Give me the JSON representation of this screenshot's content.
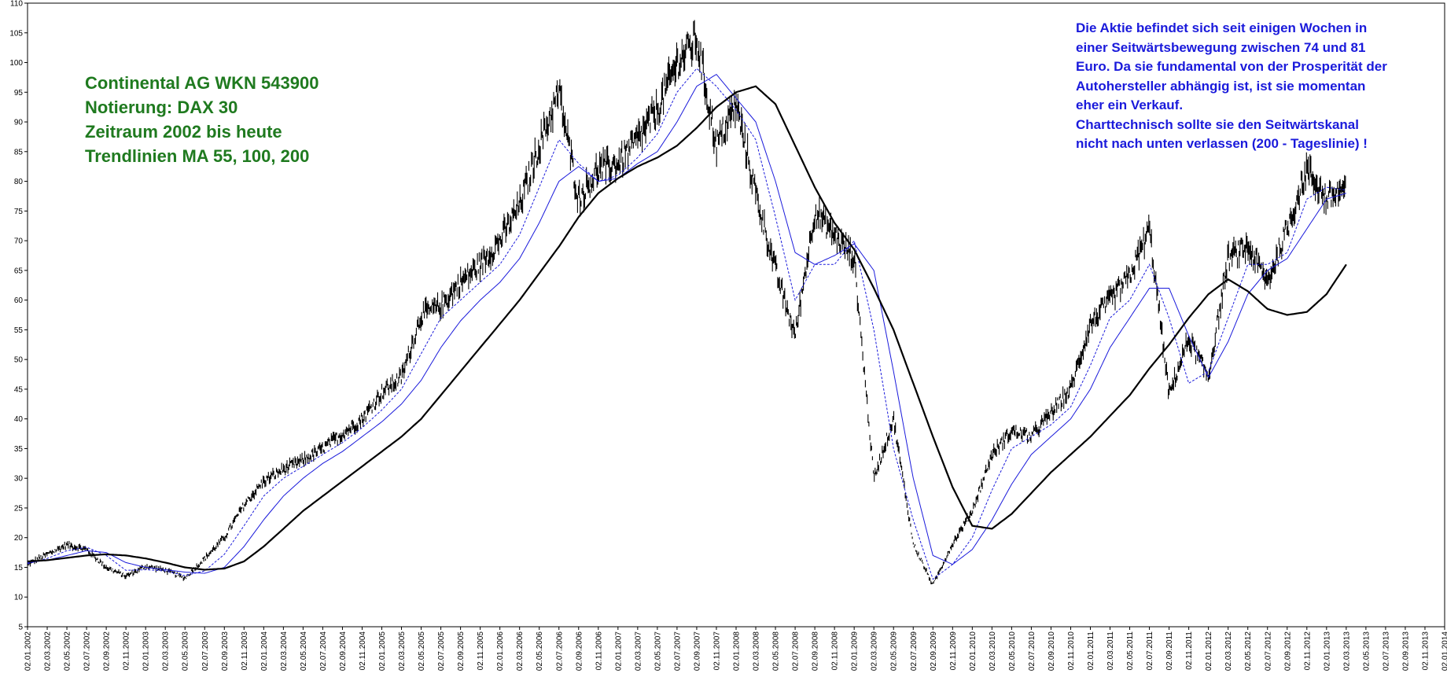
{
  "annotations": {
    "info_lines": [
      "Continental AG WKN 543900",
      "Notierung: DAX 30",
      "Zeitraum 2002 bis heute",
      "Trendlinien  MA 55, 100, 200"
    ],
    "comment_lines": [
      "Die Aktie befindet sich seit einigen Wochen in",
      "einer Seitwärtsbewegung zwischen 74 und 81",
      "Euro. Da sie fundamental von der Prosperität der",
      "Autohersteller abhängig ist, ist sie momentan",
      "eher ein Verkauf.",
      "Charttechnisch sollte sie den Seitwärtskanal",
      "nicht nach unten verlassen (200 - Tageslinie) !"
    ]
  },
  "colors": {
    "info_text": "#1f7a1f",
    "comment_text": "#1a1adb",
    "price": "#000000",
    "ma55": "#1a1adb",
    "ma100": "#1a1adb",
    "ma200": "#000000"
  },
  "chart_data": {
    "type": "line",
    "ylim": [
      5,
      110
    ],
    "y_ticks": [
      5,
      10,
      15,
      20,
      25,
      30,
      35,
      40,
      45,
      50,
      55,
      60,
      65,
      70,
      75,
      80,
      85,
      90,
      95,
      100,
      105,
      110
    ],
    "x_tick_labels": [
      "02.01.2002",
      "02.03.2002",
      "02.05.2002",
      "02.07.2002",
      "02.09.2002",
      "02.11.2002",
      "02.01.2003",
      "02.03.2003",
      "02.05.2003",
      "02.07.2003",
      "02.09.2003",
      "02.11.2003",
      "02.01.2004",
      "02.03.2004",
      "02.05.2004",
      "02.07.2004",
      "02.09.2004",
      "02.11.2004",
      "02.01.2005",
      "02.03.2005",
      "02.05.2005",
      "02.07.2005",
      "02.09.2005",
      "02.11.2005",
      "02.01.2006",
      "02.03.2006",
      "02.05.2006",
      "02.07.2006",
      "02.09.2006",
      "02.11.2006",
      "02.01.2007",
      "02.03.2007",
      "02.05.2007",
      "02.07.2007",
      "02.09.2007",
      "02.11.2007",
      "02.01.2008",
      "02.03.2008",
      "02.05.2008",
      "02.07.2008",
      "02.09.2008",
      "02.11.2008",
      "02.01.2009",
      "02.03.2009",
      "02.05.2009",
      "02.07.2009",
      "02.09.2009",
      "02.11.2009",
      "02.01.2010",
      "02.03.2010",
      "02.05.2010",
      "02.07.2010",
      "02.09.2010",
      "02.11.2010",
      "02.01.2011",
      "02.03.2011",
      "02.05.2011",
      "02.07.2011",
      "02.09.2011",
      "02.11.2011",
      "02.01.2012",
      "02.03.2012",
      "02.05.2012",
      "02.07.2012",
      "02.09.2012",
      "02.11.2012",
      "02.01.2013",
      "02.03.2013",
      "02.05.2013",
      "02.07.2013",
      "02.09.2013",
      "02.11.2013",
      "02.01.2014"
    ],
    "series": [
      {
        "role": "price",
        "style": "high-low bars",
        "points": [
          [
            0,
            15.5
          ],
          [
            1,
            17.2
          ],
          [
            2,
            18.8
          ],
          [
            3,
            18.0
          ],
          [
            4,
            15.0
          ],
          [
            5,
            13.5
          ],
          [
            6,
            15.2
          ],
          [
            7,
            14.5
          ],
          [
            8,
            13.2
          ],
          [
            9,
            16.5
          ],
          [
            10,
            20.0
          ],
          [
            11,
            25.5
          ],
          [
            12,
            29.5
          ],
          [
            13,
            31.5
          ],
          [
            14,
            33.0
          ],
          [
            15,
            35.0
          ],
          [
            16,
            37.5
          ],
          [
            17,
            40.0
          ],
          [
            18,
            44.5
          ],
          [
            19,
            47.0
          ],
          [
            20,
            57.5
          ],
          [
            21,
            59.0
          ],
          [
            22,
            63.0
          ],
          [
            23,
            66.0
          ],
          [
            24,
            70.0
          ],
          [
            25,
            76.0
          ],
          [
            26,
            86.0
          ],
          [
            27,
            95.0
          ],
          [
            28,
            77.0
          ],
          [
            29,
            82.0
          ],
          [
            30,
            83.0
          ],
          [
            31,
            87.0
          ],
          [
            32,
            92.0
          ],
          [
            33,
            100.0
          ],
          [
            34,
            104.0
          ],
          [
            35,
            86.0
          ],
          [
            36,
            93.0
          ],
          [
            37,
            78.0
          ],
          [
            38,
            65.0
          ],
          [
            39,
            54.0
          ],
          [
            40,
            75.0
          ],
          [
            41,
            71.0
          ],
          [
            42,
            67.0
          ],
          [
            43,
            30.0
          ],
          [
            44,
            40.0
          ],
          [
            45,
            19.0
          ],
          [
            46,
            12.0
          ],
          [
            47,
            19.0
          ],
          [
            48,
            24.5
          ],
          [
            49,
            34.0
          ],
          [
            50,
            38.0
          ],
          [
            51,
            37.0
          ],
          [
            52,
            41.0
          ],
          [
            53,
            45.0
          ],
          [
            54,
            56.0
          ],
          [
            55,
            60.0
          ],
          [
            56,
            64.0
          ],
          [
            57,
            72.0
          ],
          [
            58,
            44.0
          ],
          [
            59,
            53.5
          ],
          [
            60,
            47.0
          ],
          [
            61,
            67.0
          ],
          [
            62,
            69.0
          ],
          [
            63,
            63.0
          ],
          [
            64,
            72.0
          ],
          [
            65,
            82.0
          ],
          [
            66,
            77.0
          ],
          [
            67,
            79.0
          ]
        ]
      },
      {
        "role": "MA 55",
        "style": "dashed",
        "points": [
          [
            0,
            15.6
          ],
          [
            1,
            16.5
          ],
          [
            2,
            17.8
          ],
          [
            3,
            18.4
          ],
          [
            4,
            17.0
          ],
          [
            5,
            14.5
          ],
          [
            6,
            14.6
          ],
          [
            7,
            14.4
          ],
          [
            8,
            13.6
          ],
          [
            9,
            14.4
          ],
          [
            10,
            17.2
          ],
          [
            11,
            22.0
          ],
          [
            12,
            27.0
          ],
          [
            13,
            30.0
          ],
          [
            14,
            32.0
          ],
          [
            15,
            34.0
          ],
          [
            16,
            36.0
          ],
          [
            17,
            38.5
          ],
          [
            18,
            41.5
          ],
          [
            19,
            45.0
          ],
          [
            20,
            51.0
          ],
          [
            21,
            57.0
          ],
          [
            22,
            60.0
          ],
          [
            23,
            63.0
          ],
          [
            24,
            66.0
          ],
          [
            25,
            71.0
          ],
          [
            26,
            79.0
          ],
          [
            27,
            87.0
          ],
          [
            28,
            83.0
          ],
          [
            29,
            80.0
          ],
          [
            30,
            81.0
          ],
          [
            31,
            84.0
          ],
          [
            32,
            88.0
          ],
          [
            33,
            95.0
          ],
          [
            34,
            99.0
          ],
          [
            35,
            96.0
          ],
          [
            36,
            92.0
          ],
          [
            37,
            87.0
          ],
          [
            38,
            74.0
          ],
          [
            39,
            60.0
          ],
          [
            40,
            66.0
          ],
          [
            41,
            66.0
          ],
          [
            42,
            70.0
          ],
          [
            43,
            55.0
          ],
          [
            44,
            35.0
          ],
          [
            45,
            23.0
          ],
          [
            46,
            13.0
          ],
          [
            47,
            15.5
          ],
          [
            48,
            20.0
          ],
          [
            49,
            28.0
          ],
          [
            50,
            35.0
          ],
          [
            51,
            37.0
          ],
          [
            52,
            39.0
          ],
          [
            53,
            42.0
          ],
          [
            54,
            49.0
          ],
          [
            55,
            57.0
          ],
          [
            56,
            60.0
          ],
          [
            57,
            66.0
          ],
          [
            58,
            57.0
          ],
          [
            59,
            46.0
          ],
          [
            60,
            48.0
          ],
          [
            61,
            57.0
          ],
          [
            62,
            66.0
          ],
          [
            63,
            66.0
          ],
          [
            64,
            68.0
          ],
          [
            65,
            77.0
          ],
          [
            66,
            79.0
          ],
          [
            67,
            78.5
          ]
        ]
      },
      {
        "role": "MA 100",
        "style": "solid thin",
        "points": [
          [
            0,
            15.8
          ],
          [
            1,
            16.2
          ],
          [
            2,
            17.0
          ],
          [
            3,
            17.8
          ],
          [
            4,
            17.5
          ],
          [
            5,
            15.8
          ],
          [
            6,
            15.0
          ],
          [
            7,
            14.6
          ],
          [
            8,
            14.2
          ],
          [
            9,
            14.0
          ],
          [
            10,
            15.0
          ],
          [
            11,
            18.5
          ],
          [
            12,
            23.0
          ],
          [
            13,
            27.0
          ],
          [
            14,
            30.0
          ],
          [
            15,
            32.5
          ],
          [
            16,
            34.5
          ],
          [
            17,
            37.0
          ],
          [
            18,
            39.5
          ],
          [
            19,
            42.5
          ],
          [
            20,
            46.5
          ],
          [
            21,
            52.0
          ],
          [
            22,
            56.5
          ],
          [
            23,
            60.0
          ],
          [
            24,
            63.0
          ],
          [
            25,
            67.0
          ],
          [
            26,
            73.0
          ],
          [
            27,
            80.0
          ],
          [
            28,
            82.5
          ],
          [
            29,
            80.0
          ],
          [
            30,
            80.5
          ],
          [
            31,
            83.0
          ],
          [
            32,
            85.0
          ],
          [
            33,
            90.0
          ],
          [
            34,
            96.0
          ],
          [
            35,
            98.0
          ],
          [
            36,
            94.0
          ],
          [
            37,
            90.0
          ],
          [
            38,
            80.0
          ],
          [
            39,
            68.0
          ],
          [
            40,
            66.0
          ],
          [
            41,
            67.5
          ],
          [
            42,
            69.5
          ],
          [
            43,
            65.0
          ],
          [
            44,
            48.0
          ],
          [
            45,
            30.0
          ],
          [
            46,
            17.0
          ],
          [
            47,
            15.5
          ],
          [
            48,
            18.0
          ],
          [
            49,
            23.0
          ],
          [
            50,
            29.0
          ],
          [
            51,
            34.0
          ],
          [
            52,
            37.0
          ],
          [
            53,
            40.0
          ],
          [
            54,
            45.0
          ],
          [
            55,
            52.0
          ],
          [
            56,
            57.0
          ],
          [
            57,
            62.0
          ],
          [
            58,
            62.0
          ],
          [
            59,
            54.0
          ],
          [
            60,
            47.0
          ],
          [
            61,
            53.0
          ],
          [
            62,
            61.0
          ],
          [
            63,
            65.0
          ],
          [
            64,
            67.0
          ],
          [
            65,
            72.0
          ],
          [
            66,
            77.0
          ],
          [
            67,
            78.0
          ]
        ]
      },
      {
        "role": "MA 200",
        "style": "solid bold",
        "points": [
          [
            0,
            16.0
          ],
          [
            1,
            16.2
          ],
          [
            2,
            16.6
          ],
          [
            3,
            17.0
          ],
          [
            4,
            17.2
          ],
          [
            5,
            17.0
          ],
          [
            6,
            16.5
          ],
          [
            7,
            15.8
          ],
          [
            8,
            15.0
          ],
          [
            9,
            14.6
          ],
          [
            10,
            14.8
          ],
          [
            11,
            16.0
          ],
          [
            12,
            18.5
          ],
          [
            13,
            21.5
          ],
          [
            14,
            24.5
          ],
          [
            15,
            27.0
          ],
          [
            16,
            29.5
          ],
          [
            17,
            32.0
          ],
          [
            18,
            34.5
          ],
          [
            19,
            37.0
          ],
          [
            20,
            40.0
          ],
          [
            21,
            44.0
          ],
          [
            22,
            48.0
          ],
          [
            23,
            52.0
          ],
          [
            24,
            56.0
          ],
          [
            25,
            60.0
          ],
          [
            26,
            64.5
          ],
          [
            27,
            69.0
          ],
          [
            28,
            74.0
          ],
          [
            29,
            78.0
          ],
          [
            30,
            80.5
          ],
          [
            31,
            82.5
          ],
          [
            32,
            84.0
          ],
          [
            33,
            86.0
          ],
          [
            34,
            89.0
          ],
          [
            35,
            92.5
          ],
          [
            36,
            95.0
          ],
          [
            37,
            96.0
          ],
          [
            38,
            93.0
          ],
          [
            39,
            86.0
          ],
          [
            40,
            79.0
          ],
          [
            41,
            73.0
          ],
          [
            42,
            68.5
          ],
          [
            43,
            62.0
          ],
          [
            44,
            55.0
          ],
          [
            45,
            46.0
          ],
          [
            46,
            37.0
          ],
          [
            47,
            28.5
          ],
          [
            48,
            22.0
          ],
          [
            49,
            21.5
          ],
          [
            50,
            24.0
          ],
          [
            51,
            27.5
          ],
          [
            52,
            31.0
          ],
          [
            53,
            34.0
          ],
          [
            54,
            37.0
          ],
          [
            55,
            40.5
          ],
          [
            56,
            44.0
          ],
          [
            57,
            48.5
          ],
          [
            58,
            52.5
          ],
          [
            59,
            57.0
          ],
          [
            60,
            61.0
          ],
          [
            61,
            63.5
          ],
          [
            62,
            61.5
          ],
          [
            63,
            58.5
          ],
          [
            64,
            57.5
          ],
          [
            65,
            58.0
          ],
          [
            66,
            61.0
          ],
          [
            67,
            66.0
          ]
        ]
      }
    ]
  }
}
